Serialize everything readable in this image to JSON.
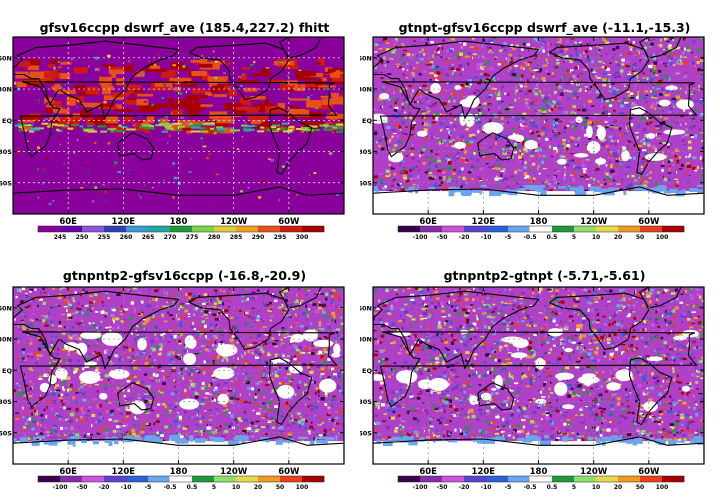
{
  "panels": [
    {
      "title": "gfsv16ccpp  dswrf_ave  (185.4,227.2)  fhitt",
      "colorbar": {
        "labels": [
          "245",
          "250",
          "255",
          "260",
          "265",
          "270",
          "275",
          "280",
          "285",
          "290",
          "295",
          "300"
        ],
        "colors": [
          "#8a009a",
          "#6a00b0",
          "#8f55d8",
          "#2f3fb8",
          "#3a9ad8",
          "#24a6a6",
          "#1e9a3c",
          "#7bd44a",
          "#d8d040",
          "#f2a01e",
          "#e8501a",
          "#cf1a10",
          "#a60000"
        ]
      }
    },
    {
      "title": "gtnpt-gfsv16ccpp  dswrf_ave  (-11.1,-15.3)",
      "colorbar": {
        "labels": [
          "-100",
          "-50",
          "-20",
          "-10",
          "-5",
          "-0.5",
          "0.5",
          "5",
          "10",
          "20",
          "50",
          "100"
        ],
        "colors": [
          "#3a004a",
          "#8a2ab0",
          "#d050e0",
          "#5b45d0",
          "#2d5fd8",
          "#6aa6ee",
          "#ffffff",
          "#1e9a3c",
          "#8fe06a",
          "#e8d850",
          "#f29a20",
          "#e8401a",
          "#a60000"
        ]
      }
    },
    {
      "title": "gtnpntp2-gfsv16ccpp  (-16.8,-20.9)",
      "colorbar": {
        "labels": [
          "-100",
          "-50",
          "-20",
          "-10",
          "-5",
          "-0.5",
          "0.5",
          "5",
          "10",
          "20",
          "50",
          "100"
        ],
        "colors": [
          "#3a004a",
          "#8a2ab0",
          "#d050e0",
          "#5b45d0",
          "#2d5fd8",
          "#6aa6ee",
          "#ffffff",
          "#1e9a3c",
          "#8fe06a",
          "#e8d850",
          "#f29a20",
          "#e8401a",
          "#a60000"
        ]
      }
    },
    {
      "title": "gtnpntp2-gtnpt  (-5.71,-5.61)",
      "colorbar": {
        "labels": [
          "-100",
          "-50",
          "-20",
          "-10",
          "-5",
          "-0.5",
          "0.5",
          "5",
          "10",
          "20",
          "50",
          "100"
        ],
        "colors": [
          "#3a004a",
          "#8a2ab0",
          "#d050e0",
          "#5b45d0",
          "#2d5fd8",
          "#6aa6ee",
          "#ffffff",
          "#1e9a3c",
          "#8fe06a",
          "#e8d850",
          "#f29a20",
          "#e8401a",
          "#a60000"
        ]
      }
    }
  ],
  "axes": {
    "lat_labels": [
      "60N",
      "30N",
      "EQ",
      "30S",
      "60S"
    ],
    "lon_labels": [
      "60E",
      "120E",
      "180",
      "120W",
      "60W"
    ]
  }
}
